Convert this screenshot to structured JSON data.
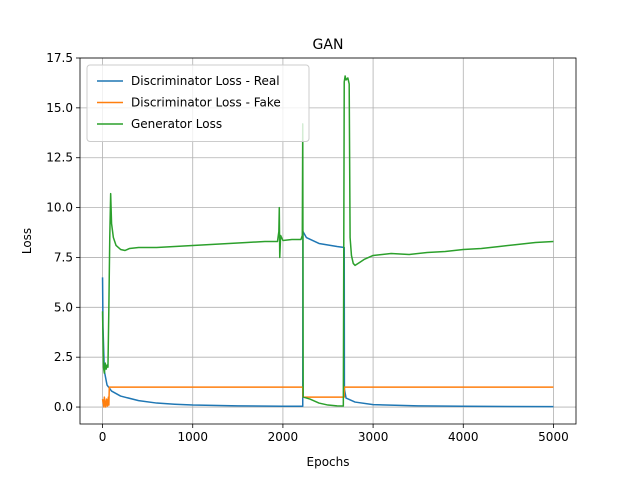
{
  "chart_data": {
    "type": "line",
    "title": "GAN",
    "xlabel": "Epochs",
    "ylabel": "Loss",
    "xlim": [
      -250,
      5250
    ],
    "ylim": [
      -0.85,
      17.5
    ],
    "grid": true,
    "legend_position": "top-left",
    "x_ticks": [
      0,
      1000,
      2000,
      3000,
      4000,
      5000
    ],
    "x_tick_labels": [
      "0",
      "1000",
      "2000",
      "3000",
      "4000",
      "5000"
    ],
    "y_ticks": [
      0.0,
      2.5,
      5.0,
      7.5,
      10.0,
      12.5,
      15.0,
      17.5
    ],
    "y_tick_labels": [
      "0.0",
      "2.5",
      "5.0",
      "7.5",
      "10.0",
      "12.5",
      "15.0",
      "17.5"
    ],
    "series": [
      {
        "name": "Discriminator Loss - Real",
        "color": "#1f77b4",
        "points": [
          [
            0,
            6.5
          ],
          [
            5,
            4.0
          ],
          [
            20,
            1.8
          ],
          [
            50,
            1.1
          ],
          [
            100,
            0.8
          ],
          [
            200,
            0.55
          ],
          [
            400,
            0.32
          ],
          [
            600,
            0.2
          ],
          [
            800,
            0.14
          ],
          [
            1000,
            0.1
          ],
          [
            1500,
            0.06
          ],
          [
            2000,
            0.04
          ],
          [
            2200,
            0.04
          ],
          [
            2220,
            0.04
          ],
          [
            2222,
            8.8
          ],
          [
            2260,
            8.5
          ],
          [
            2400,
            8.2
          ],
          [
            2600,
            8.05
          ],
          [
            2680,
            8.0
          ],
          [
            2682,
            0.9
          ],
          [
            2700,
            0.45
          ],
          [
            2800,
            0.25
          ],
          [
            3000,
            0.12
          ],
          [
            3500,
            0.06
          ],
          [
            4000,
            0.04
          ],
          [
            4500,
            0.03
          ],
          [
            5000,
            0.02
          ]
        ]
      },
      {
        "name": "Discriminator Loss - Fake",
        "color": "#ff7f0e",
        "points": [
          [
            0,
            0.4
          ],
          [
            15,
            0.0
          ],
          [
            20,
            0.5
          ],
          [
            35,
            0.0
          ],
          [
            45,
            0.4
          ],
          [
            55,
            0.05
          ],
          [
            65,
            0.5
          ],
          [
            70,
            0.1
          ],
          [
            75,
            1.0
          ],
          [
            2220,
            1.0
          ],
          [
            2222,
            0.5
          ],
          [
            2680,
            0.5
          ],
          [
            2682,
            1.0
          ],
          [
            5000,
            1.0
          ]
        ]
      },
      {
        "name": "Generator Loss",
        "color": "#2ca02c",
        "points": [
          [
            0,
            4.8
          ],
          [
            10,
            2.0
          ],
          [
            20,
            1.7
          ],
          [
            30,
            2.2
          ],
          [
            40,
            1.9
          ],
          [
            50,
            2.1
          ],
          [
            60,
            2.0
          ],
          [
            70,
            5.0
          ],
          [
            80,
            8.5
          ],
          [
            90,
            10.7
          ],
          [
            100,
            9.2
          ],
          [
            120,
            8.5
          ],
          [
            150,
            8.1
          ],
          [
            200,
            7.9
          ],
          [
            250,
            7.85
          ],
          [
            300,
            7.95
          ],
          [
            400,
            8.0
          ],
          [
            600,
            8.0
          ],
          [
            800,
            8.05
          ],
          [
            1000,
            8.1
          ],
          [
            1200,
            8.15
          ],
          [
            1400,
            8.2
          ],
          [
            1600,
            8.25
          ],
          [
            1800,
            8.3
          ],
          [
            1940,
            8.3
          ],
          [
            1955,
            8.8
          ],
          [
            1960,
            10.0
          ],
          [
            1965,
            7.5
          ],
          [
            1975,
            8.6
          ],
          [
            2000,
            8.35
          ],
          [
            2100,
            8.4
          ],
          [
            2200,
            8.4
          ],
          [
            2215,
            8.6
          ],
          [
            2220,
            14.2
          ],
          [
            2225,
            0.5
          ],
          [
            2300,
            0.4
          ],
          [
            2400,
            0.2
          ],
          [
            2500,
            0.1
          ],
          [
            2600,
            0.06
          ],
          [
            2670,
            0.05
          ],
          [
            2680,
            16.3
          ],
          [
            2690,
            16.6
          ],
          [
            2700,
            16.4
          ],
          [
            2720,
            16.5
          ],
          [
            2735,
            16.2
          ],
          [
            2745,
            8.5
          ],
          [
            2760,
            7.6
          ],
          [
            2780,
            7.2
          ],
          [
            2800,
            7.1
          ],
          [
            2850,
            7.25
          ],
          [
            2900,
            7.4
          ],
          [
            3000,
            7.6
          ],
          [
            3200,
            7.7
          ],
          [
            3400,
            7.65
          ],
          [
            3600,
            7.75
          ],
          [
            3800,
            7.8
          ],
          [
            4000,
            7.9
          ],
          [
            4200,
            7.95
          ],
          [
            4400,
            8.05
          ],
          [
            4600,
            8.15
          ],
          [
            4800,
            8.25
          ],
          [
            5000,
            8.3
          ]
        ]
      }
    ]
  }
}
